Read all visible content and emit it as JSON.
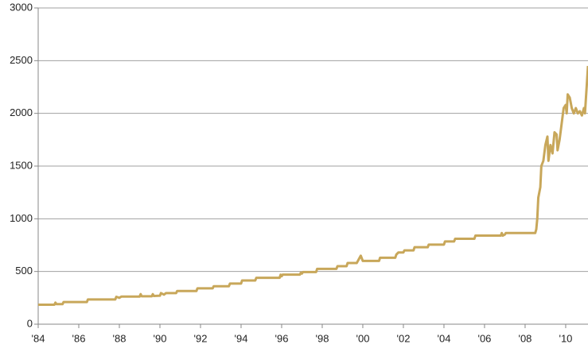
{
  "chart_data": {
    "type": "line",
    "x": [
      1984.0,
      1984.8,
      1984.85,
      1984.9,
      1985.2,
      1985.25,
      1986.4,
      1986.45,
      1987.8,
      1987.85,
      1988.0,
      1988.1,
      1989.0,
      1989.05,
      1989.1,
      1989.6,
      1989.65,
      1989.7,
      1990.0,
      1990.05,
      1990.2,
      1990.3,
      1990.8,
      1990.85,
      1991.8,
      1991.85,
      1992.6,
      1992.65,
      1993.4,
      1993.45,
      1994.0,
      1994.05,
      1994.7,
      1994.75,
      1995.9,
      1995.95,
      1996.0,
      1996.05,
      1996.9,
      1996.95,
      1997.0,
      1997.05,
      1997.7,
      1997.75,
      1998.7,
      1998.75,
      1999.2,
      1999.25,
      1999.7,
      1999.9,
      2000.0,
      2000.8,
      2000.85,
      2001.6,
      2001.65,
      2001.75,
      2002.0,
      2002.05,
      2002.5,
      2002.55,
      2003.2,
      2003.25,
      2004.0,
      2004.05,
      2004.5,
      2004.55,
      2005.5,
      2005.55,
      2006.8,
      2006.85,
      2006.9,
      2007.0,
      2007.05,
      2008.5,
      2008.55,
      2008.6,
      2008.65,
      2008.75,
      2008.8,
      2008.9,
      2009.0,
      2009.1,
      2009.15,
      2009.25,
      2009.35,
      2009.45,
      2009.55,
      2009.6,
      2009.7,
      2009.8,
      2009.9,
      2010.0,
      2010.05,
      2010.1,
      2010.2,
      2010.3,
      2010.4,
      2010.5,
      2010.6,
      2010.7,
      2010.8,
      2010.9,
      2010.95,
      2011.0,
      2011.05,
      2011.1
    ],
    "series": [
      {
        "color": "#c8a75a",
        "values": [
          185,
          185,
          205,
          190,
          190,
          210,
          210,
          235,
          235,
          260,
          250,
          262,
          262,
          285,
          265,
          265,
          285,
          268,
          270,
          295,
          280,
          295,
          295,
          315,
          315,
          340,
          340,
          360,
          360,
          385,
          385,
          415,
          415,
          440,
          440,
          470,
          455,
          470,
          470,
          490,
          480,
          495,
          495,
          525,
          525,
          550,
          550,
          580,
          580,
          650,
          600,
          600,
          630,
          630,
          660,
          680,
          680,
          700,
          700,
          730,
          730,
          755,
          755,
          785,
          785,
          810,
          810,
          840,
          840,
          865,
          840,
          850,
          865,
          865,
          900,
          1000,
          1200,
          1300,
          1500,
          1550,
          1700,
          1780,
          1550,
          1700,
          1620,
          1820,
          1800,
          1650,
          1750,
          1900,
          2050,
          2080,
          2000,
          2180,
          2150,
          2050,
          2000,
          2050,
          2000,
          2020,
          1980,
          2050,
          2000,
          2150,
          2300,
          2450
        ]
      }
    ],
    "xlim": [
      1984,
      2011.1
    ],
    "xticks": [
      {
        "value": 1984,
        "label": "'84"
      },
      {
        "value": 1986,
        "label": "'86"
      },
      {
        "value": 1988,
        "label": "'88"
      },
      {
        "value": 1990,
        "label": "'90"
      },
      {
        "value": 1992,
        "label": "'92"
      },
      {
        "value": 1994,
        "label": "'94"
      },
      {
        "value": 1996,
        "label": "'96"
      },
      {
        "value": 1998,
        "label": "'98"
      },
      {
        "value": 2000,
        "label": "'00"
      },
      {
        "value": 2002,
        "label": "'02"
      },
      {
        "value": 2004,
        "label": "'04"
      },
      {
        "value": 2006,
        "label": "'06"
      },
      {
        "value": 2008,
        "label": "'08"
      },
      {
        "value": 2010,
        "label": "'10"
      }
    ],
    "ylim": [
      0,
      3000
    ],
    "yticks": [
      0,
      500,
      1000,
      1500,
      2000,
      2500,
      3000
    ],
    "grid": true
  }
}
